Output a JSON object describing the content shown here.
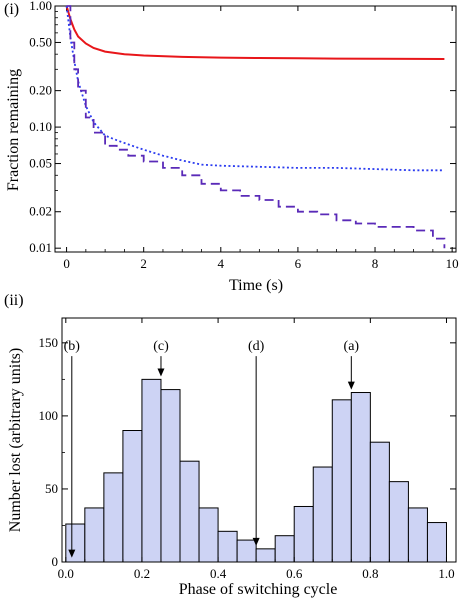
{
  "chart_data": [
    {
      "type": "line",
      "panel_label": "(i)",
      "xlabel": "Time (s)",
      "ylabel": "Fraction remaining",
      "xlim": [
        -0.3,
        10.1
      ],
      "ylim": [
        0.0093,
        1.0
      ],
      "yscale": "log",
      "xticks": [
        0,
        2,
        4,
        6,
        8,
        10
      ],
      "xtick_labels": [
        "0",
        "2",
        "4",
        "6",
        "8",
        "10"
      ],
      "yticks": [
        1.0,
        0.5,
        0.2,
        0.1,
        0.05,
        0.02,
        0.01
      ],
      "ytick_labels": [
        "1.00",
        "0.50",
        "0.20",
        "0.10",
        "0.05",
        "0.02",
        "0.01"
      ],
      "grid": false,
      "series": [
        {
          "style": "solid",
          "color": "#e8161a",
          "x": [
            0,
            0.1,
            0.2,
            0.3,
            0.5,
            0.7,
            1.0,
            1.5,
            2,
            3,
            4,
            5,
            6,
            7,
            8,
            9,
            9.8
          ],
          "y": [
            1.0,
            0.78,
            0.64,
            0.56,
            0.49,
            0.45,
            0.42,
            0.4,
            0.39,
            0.38,
            0.375,
            0.372,
            0.37,
            0.368,
            0.367,
            0.366,
            0.365
          ]
        },
        {
          "style": "dotted",
          "color": "#2b3cf0",
          "x": [
            0,
            0.1,
            0.2,
            0.3,
            0.5,
            0.7,
            1.0,
            1.3,
            1.6,
            2.0,
            2.5,
            3.0,
            3.5,
            4,
            5,
            6,
            7,
            8,
            9,
            9.8
          ],
          "y": [
            1.0,
            0.55,
            0.35,
            0.24,
            0.15,
            0.11,
            0.085,
            0.078,
            0.072,
            0.065,
            0.058,
            0.053,
            0.049,
            0.048,
            0.047,
            0.046,
            0.046,
            0.045,
            0.044,
            0.044
          ]
        },
        {
          "style": "dashed",
          "color": "#5a2ab8",
          "x": [
            0,
            0.1,
            0.2,
            0.3,
            0.5,
            0.7,
            1.0,
            1.3,
            1.6,
            2.0,
            2.5,
            3.0,
            3.5,
            4.0,
            4.5,
            5.0,
            5.5,
            6.0,
            6.5,
            7.0,
            7.5,
            8.0,
            8.5,
            9.0,
            9.5,
            9.8
          ],
          "y": [
            1.0,
            0.5,
            0.3,
            0.2,
            0.12,
            0.09,
            0.07,
            0.065,
            0.058,
            0.052,
            0.046,
            0.04,
            0.034,
            0.03,
            0.027,
            0.025,
            0.022,
            0.02,
            0.019,
            0.017,
            0.016,
            0.015,
            0.015,
            0.014,
            0.012,
            0.01
          ]
        }
      ]
    },
    {
      "type": "bar",
      "panel_label": "(ii)",
      "xlabel": "Phase of switching cycle",
      "ylabel": "Number lost (arbitrary units)",
      "xlim": [
        -0.01,
        1.025
      ],
      "ylim": [
        0,
        167
      ],
      "xticks": [
        0.0,
        0.2,
        0.4,
        0.6,
        0.8,
        1.0
      ],
      "xtick_labels": [
        "0.0",
        "0.2",
        "0.4",
        "0.6",
        "0.8",
        "1.0"
      ],
      "yticks": [
        0,
        50,
        100,
        150
      ],
      "ytick_labels": [
        "0",
        "50",
        "100",
        "150"
      ],
      "bin_width": 0.05,
      "bin_starts": [
        0.0,
        0.05,
        0.1,
        0.15,
        0.2,
        0.25,
        0.3,
        0.35,
        0.4,
        0.45,
        0.5,
        0.55,
        0.6,
        0.65,
        0.7,
        0.75,
        0.8,
        0.85,
        0.9,
        0.95
      ],
      "values": [
        26,
        37,
        61,
        90,
        125,
        118,
        69,
        37,
        21,
        15,
        9,
        18,
        38,
        65,
        111,
        116,
        82,
        55,
        37,
        27
      ],
      "bar_fill": "#cdd3f4",
      "bar_edge": "#000000",
      "annotations": [
        {
          "label": "(b)",
          "x": 0.0,
          "arrow_to": 3
        },
        {
          "label": "(c)",
          "x": 0.25,
          "arrow_to": 127
        },
        {
          "label": "(d)",
          "x": 0.5,
          "arrow_to": 11
        },
        {
          "label": "(a)",
          "x": 0.75,
          "arrow_to": 118
        }
      ]
    }
  ]
}
